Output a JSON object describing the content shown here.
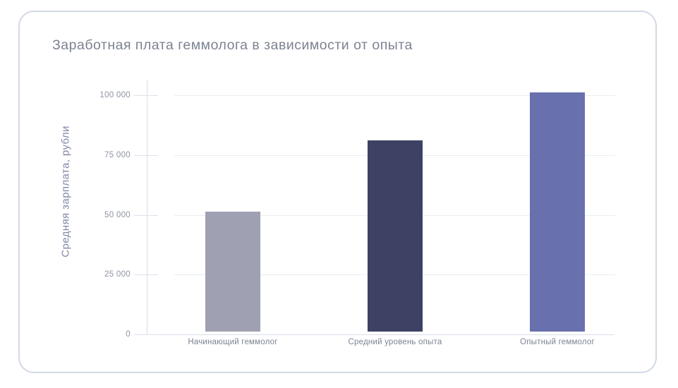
{
  "card": {
    "border_color": "#d2d9e6",
    "background": "#ffffff"
  },
  "chart_data": {
    "type": "bar",
    "title": "Заработная плата геммолога в зависимости от опыта",
    "categories": [
      "Начинающий геммолог",
      "Средний уровень опыта",
      "Опытный геммолог"
    ],
    "values": [
      50000,
      80000,
      100000
    ],
    "bar_colors": [
      "#9fa1b3",
      "#3d4164",
      "#6871ae"
    ],
    "xlabel": "",
    "ylabel": "Средняя зарплата, рубли",
    "ylim": [
      0,
      100000
    ],
    "yticks": [
      0,
      25000,
      50000,
      75000,
      100000
    ],
    "ytick_labels": [
      "0",
      "25 000",
      "50 000",
      "75 000",
      "100 000"
    ],
    "grid": "horizontal",
    "legend": "none",
    "title_color": "#7b8391",
    "gridline_color": "#e9ecf2",
    "axis_color": "#d9dde7"
  }
}
